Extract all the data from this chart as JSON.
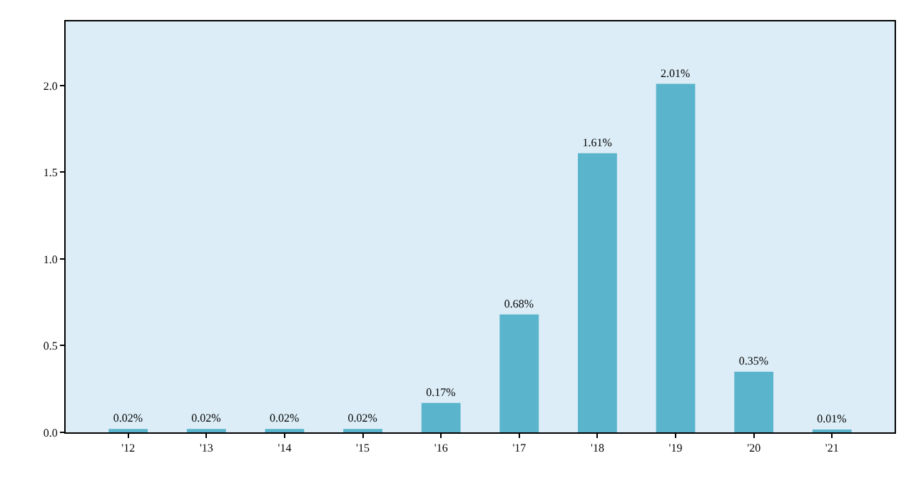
{
  "chart_data": {
    "type": "bar",
    "categories": [
      "'12",
      "'13",
      "'14",
      "'15",
      "'16",
      "'17",
      "'18",
      "'19",
      "'20",
      "'21"
    ],
    "values": [
      0.02,
      0.02,
      0.02,
      0.02,
      0.17,
      0.68,
      1.61,
      2.01,
      0.35,
      0.01
    ],
    "value_labels": [
      "0.02%",
      "0.02%",
      "0.02%",
      "0.02%",
      "0.17%",
      "0.68%",
      "1.61%",
      "2.01%",
      "0.35%",
      "0.01%"
    ],
    "color": "#5ab4cc",
    "ylim": [
      0,
      2.37
    ],
    "yticks": [
      {
        "value": 0,
        "label": "0.0"
      },
      {
        "value": 0.5,
        "label": "0.5"
      },
      {
        "value": 1,
        "label": "1.0"
      },
      {
        "value": 1.5,
        "label": "1.5"
      },
      {
        "value": 2,
        "label": "2.0"
      }
    ],
    "grid": false,
    "legend": false
  }
}
